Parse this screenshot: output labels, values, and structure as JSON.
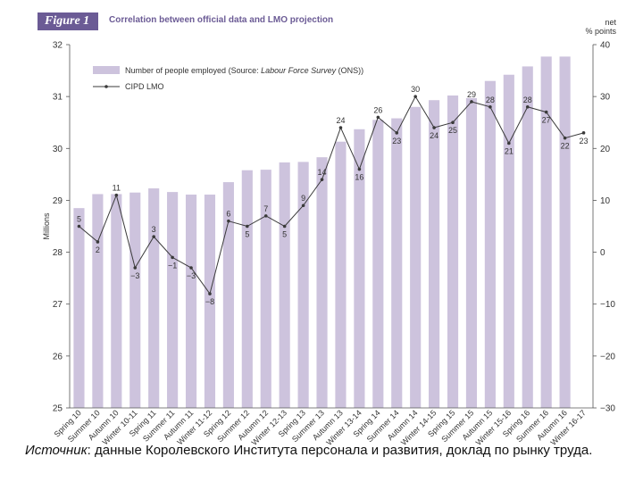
{
  "header": {
    "figure_label": "Figure 1",
    "title": "Correlation between official data and LMO projection",
    "right_unit_line1": "net",
    "right_unit_line2": "% points"
  },
  "colors": {
    "bar": "#cdc3dd",
    "line": "#3a3a3a",
    "accent": "#6b5b95",
    "grid": "#e6e6e6"
  },
  "chart_data": {
    "type": "bar+line",
    "title": "Correlation between official data and LMO projection",
    "categories": [
      "Spring 10",
      "Summer 10",
      "Autumn 10",
      "Winter 10-11",
      "Spring 11",
      "Summer 11",
      "Autumn 11",
      "Winter 11-12",
      "Spring 12",
      "Summer 12",
      "Autumn 12",
      "Winter 12-13",
      "Spring 13",
      "Summer 13",
      "Autumn 13",
      "Winter 13-14",
      "Spring 14",
      "Summer 14",
      "Autumn 14",
      "Winter 14-15",
      "Spring 15",
      "Summer 15",
      "Autumn 15",
      "Winter 15-16",
      "Spring 16",
      "Summer 16",
      "Autumn 16",
      "Winter 16-17"
    ],
    "series": [
      {
        "name": "Number of people employed (Source: Labour Force Survey (ONS))",
        "name_prefix": "Number of people employed (Source: ",
        "name_italic": "Labour Force Survey",
        "name_suffix": " (ONS))",
        "axis": "left",
        "type": "bar",
        "values": [
          28.85,
          29.12,
          29.12,
          29.15,
          29.23,
          29.16,
          29.11,
          29.11,
          29.35,
          29.58,
          29.59,
          29.73,
          29.74,
          29.83,
          30.13,
          30.37,
          30.55,
          30.58,
          30.8,
          30.93,
          31.02,
          30.97,
          31.3,
          31.42,
          31.58,
          31.77,
          31.77,
          null
        ]
      },
      {
        "name": "CIPD LMO",
        "axis": "right",
        "type": "line",
        "values": [
          5,
          2,
          11,
          -3,
          3,
          -1,
          -3,
          -8,
          6,
          5,
          7,
          5,
          9,
          14,
          24,
          16,
          26,
          23,
          30,
          24,
          25,
          29,
          28,
          21,
          28,
          27,
          22,
          23
        ],
        "labels": [
          "5",
          "2",
          "11",
          "−3",
          "3",
          "−1",
          "−3",
          "−8",
          "6",
          "5",
          "7",
          "5",
          "9",
          "14",
          "24",
          "16",
          "26",
          "23",
          "30",
          "24",
          "25",
          "29",
          "28",
          "21",
          "28",
          "27",
          "22",
          "23"
        ]
      }
    ],
    "y_left": {
      "label": "Millions",
      "min": 25,
      "max": 32,
      "ticks": [
        "25",
        "26",
        "27",
        "28",
        "29",
        "30",
        "31",
        "32"
      ]
    },
    "y_right": {
      "label": "net % points",
      "min": -30,
      "max": 40,
      "ticks": [
        "−30",
        "−20",
        "−10",
        "0",
        "10",
        "20",
        "30",
        "40"
      ]
    },
    "legend_position": "top-left",
    "grid": false
  },
  "source": {
    "label": "Источник",
    "text": ": данные Королевского Института персонала и развития, доклад по рынку труда."
  }
}
